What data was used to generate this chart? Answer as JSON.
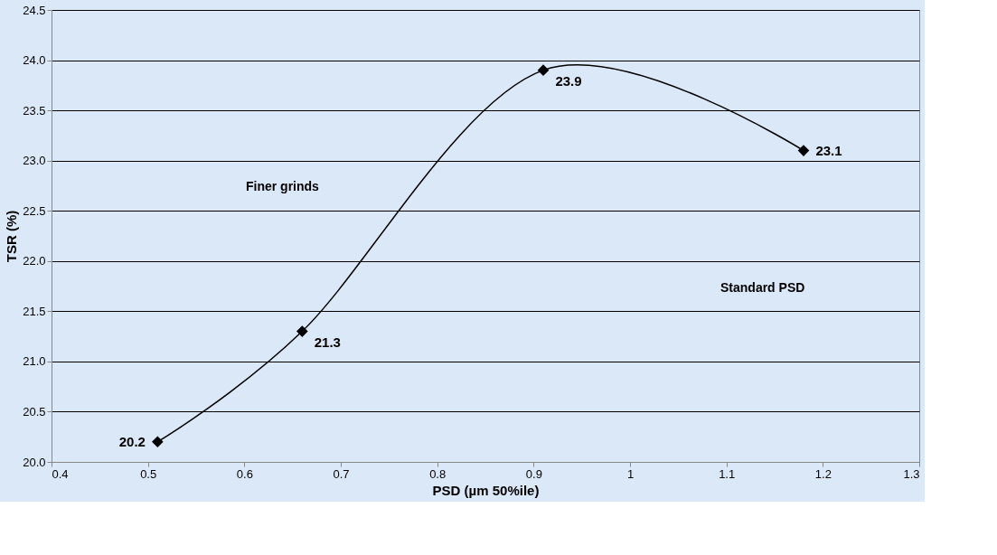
{
  "chart_data": {
    "type": "line",
    "x": [
      0.51,
      0.66,
      0.91,
      1.18
    ],
    "series": [
      {
        "color": "#000000",
        "values": [
          20.2,
          21.3,
          23.9,
          23.1
        ]
      }
    ],
    "xlabel": "PSD (µm 50%ile)",
    "ylabel": "TSR (%)",
    "xlim": [
      0.4,
      1.3
    ],
    "xticks": [
      0.4,
      0.5,
      0.6,
      0.7,
      0.8,
      0.9,
      1,
      1.1,
      1.2,
      1.3
    ],
    "ylim": [
      20,
      24.5
    ],
    "yticks": [
      {
        "value": 20,
        "label": "20.0"
      },
      20.5,
      {
        "value": 21,
        "label": "21.0"
      },
      21.5,
      {
        "value": 22,
        "label": "22.0"
      },
      22.5,
      {
        "value": 23,
        "label": "23.0"
      },
      23.5,
      {
        "value": 24,
        "label": "24.0"
      },
      24.5
    ],
    "grid": "y",
    "marker": "diamond",
    "line_style": "solid",
    "data_labels": true,
    "annotations": [
      "Finer grinds",
      "Standard PSD"
    ]
  }
}
